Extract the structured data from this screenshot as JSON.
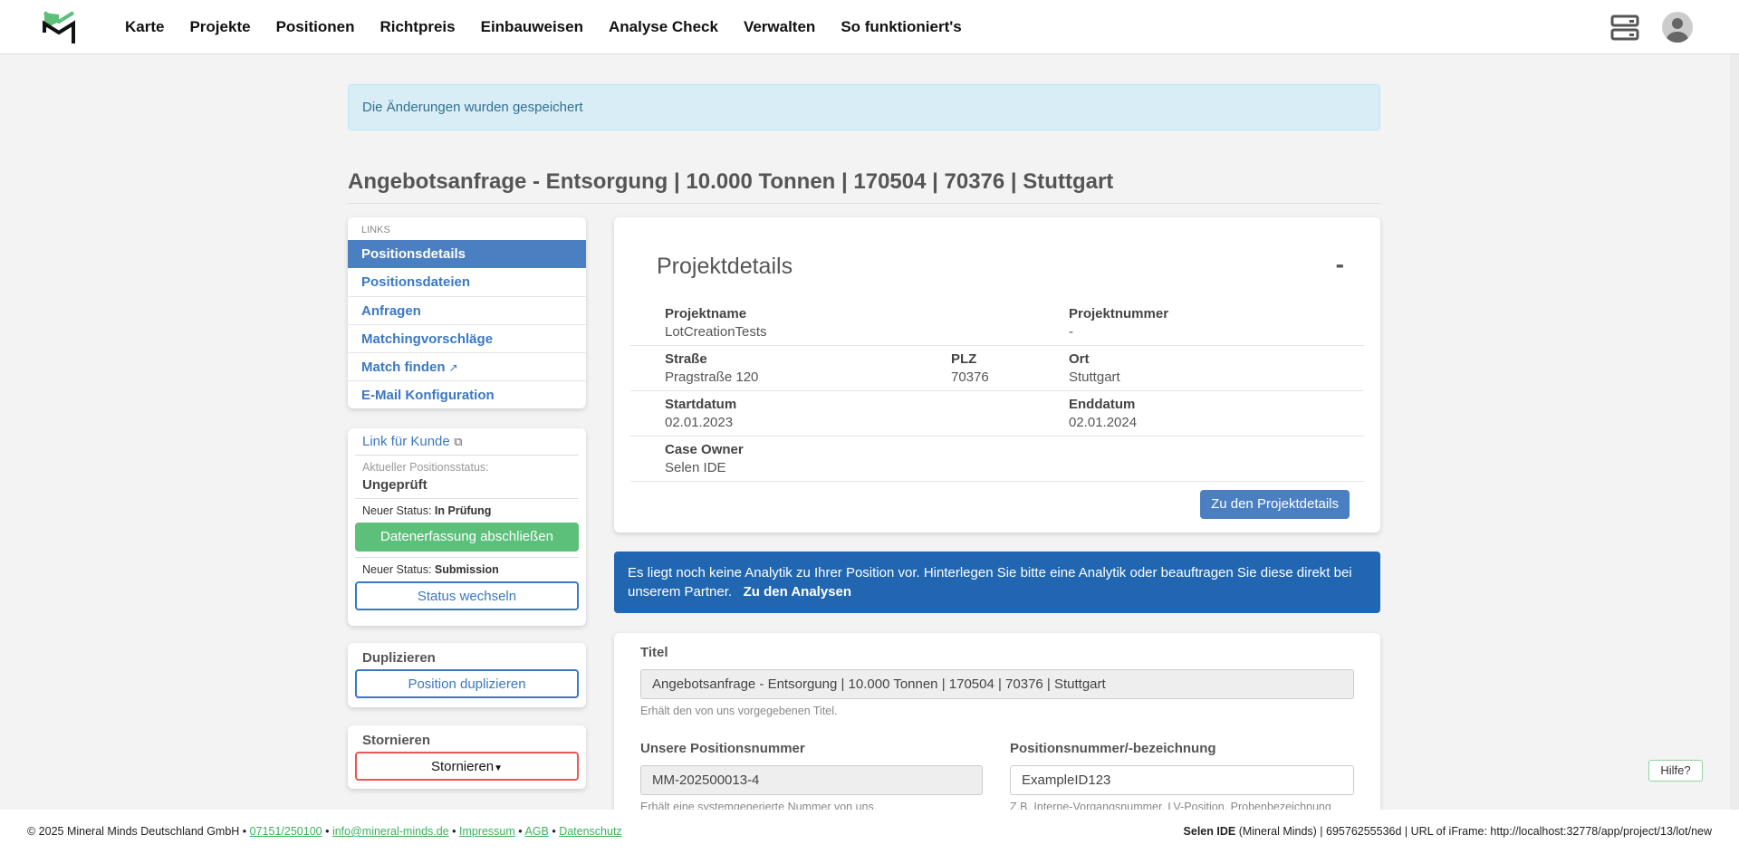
{
  "nav": {
    "items": [
      "Karte",
      "Projekte",
      "Positionen",
      "Richtpreis",
      "Einbauweisen",
      "Analyse Check",
      "Verwalten",
      "So funktioniert's"
    ]
  },
  "alert": "Die Änderungen wurden gespeichert",
  "page_title": "Angebotsanfrage - Entsorgung | 10.000 Tonnen | 170504 | 70376 | Stuttgart",
  "links": {
    "heading": "LINKS",
    "items": [
      "Positionsdetails",
      "Positionsdateien",
      "Anfragen",
      "Matchingvorschläge",
      "Match finden",
      "E-Mail Konfiguration"
    ]
  },
  "status": {
    "customer_link": "Link für Kunde",
    "current_label": "Aktueller Positionsstatus:",
    "current_value": "Ungeprüft",
    "new1_label": "Neuer Status:",
    "new1_value": "In Prüfung",
    "button1": "Datenerfassung abschließen",
    "new2_label": "Neuer Status:",
    "new2_value": "Submission",
    "button2": "Status wechseln"
  },
  "duplicate": {
    "title": "Duplizieren",
    "button": "Position duplizieren"
  },
  "cancel": {
    "title": "Stornieren",
    "button": "Stornieren"
  },
  "project": {
    "title": "Projektdetails",
    "collapse": "-",
    "projektname_label": "Projektname",
    "projektname": "LotCreationTests",
    "projektnummer_label": "Projektnummer",
    "projektnummer": "-",
    "strasse_label": "Straße",
    "strasse": "Pragstraße 120",
    "plz_label": "PLZ",
    "plz": "70376",
    "ort_label": "Ort",
    "ort": "Stuttgart",
    "start_label": "Startdatum",
    "start": "02.01.2023",
    "end_label": "Enddatum",
    "end": "02.01.2024",
    "owner_label": "Case Owner",
    "owner": "Selen IDE",
    "button": "Zu den Projektdetails"
  },
  "analytics": {
    "text": "Es liegt noch keine Analytik zu Ihrer Position vor. Hinterlegen Sie bitte eine Analytik oder beauftragen Sie diese direkt bei unserem Partner.",
    "link": "Zu den Analysen"
  },
  "form": {
    "titel_label": "Titel",
    "titel_value": "Angebotsanfrage - Entsorgung | 10.000 Tonnen | 170504 | 70376 | Stuttgart",
    "titel_help": "Erhält den von uns vorgegebenen Titel.",
    "posnr_label": "Unsere Positionsnummer",
    "posnr_value": "MM-202500013-4",
    "posnr_help": "Erhält eine systemgenerierte Nummer von uns.",
    "bez_label": "Positionsnummer/-bezeichnung",
    "bez_value": "ExampleID123",
    "bez_help": "Z.B. Interne-Vorgangsnummer, LV-Position, Probenbezeichnung"
  },
  "footer": {
    "copyright": "© 2025 Mineral Minds Deutschland GmbH •",
    "phone": "07151/250100",
    "email": "info@mineral-minds.de",
    "impressum": "Impressum",
    "agb": "AGB",
    "datenschutz": "Datenschutz",
    "user": "Selen IDE",
    "info": "(Mineral Minds) | 69576255536d | URL of iFrame: http://localhost:32778/app/project/13/lot/new"
  },
  "help": "Hilfe?",
  "colors": {
    "primary": "#4a7fc1",
    "success": "#5cbf7a",
    "info_bg": "#2166b0",
    "danger": "#ee5555"
  }
}
